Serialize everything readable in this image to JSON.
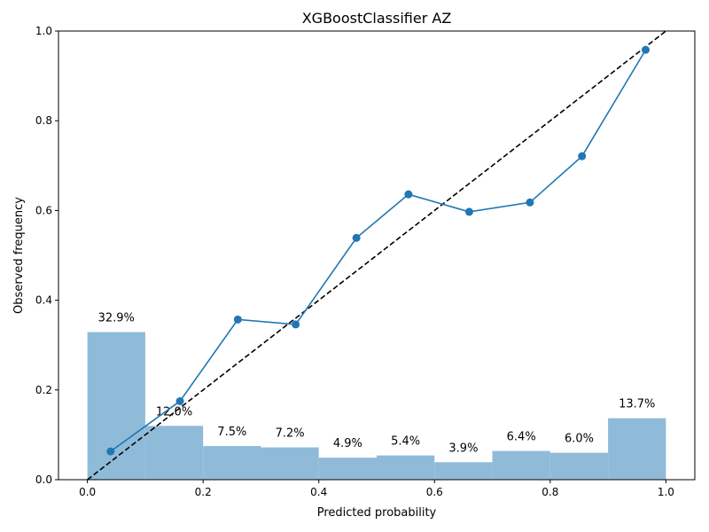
{
  "chart_data": {
    "type": "line",
    "title": "XGBoostClassifier AZ",
    "xlabel": "Predicted probability",
    "ylabel": "Observed frequency",
    "xlim": [
      -0.05,
      1.05
    ],
    "ylim": [
      0.0,
      1.0
    ],
    "xticks": [
      "0.0",
      "0.2",
      "0.4",
      "0.6",
      "0.8",
      "1.0"
    ],
    "yticks": [
      "0.0",
      "0.2",
      "0.4",
      "0.6",
      "0.8",
      "1.0"
    ],
    "grid": false,
    "reference_line": {
      "x": [
        0.0,
        1.0
      ],
      "y": [
        0.0,
        1.0
      ],
      "style": "dashed",
      "color": "#000000"
    },
    "calibration": {
      "x": [
        0.04,
        0.16,
        0.26,
        0.36,
        0.465,
        0.555,
        0.66,
        0.765,
        0.855,
        0.965
      ],
      "y": [
        0.063,
        0.175,
        0.357,
        0.346,
        0.539,
        0.636,
        0.597,
        0.618,
        0.721,
        0.958
      ],
      "color": "#1f77b4"
    },
    "histogram": {
      "bin_edges": [
        0.0,
        0.1,
        0.2,
        0.3,
        0.4,
        0.5,
        0.6,
        0.7,
        0.8,
        0.9,
        1.0
      ],
      "values": [
        0.329,
        0.12,
        0.075,
        0.072,
        0.049,
        0.054,
        0.039,
        0.064,
        0.06,
        0.137
      ],
      "labels": [
        "32.9%",
        "12.0%",
        "7.5%",
        "7.2%",
        "4.9%",
        "5.4%",
        "3.9%",
        "6.4%",
        "6.0%",
        "13.7%"
      ],
      "color": "#8fbbd9"
    }
  }
}
